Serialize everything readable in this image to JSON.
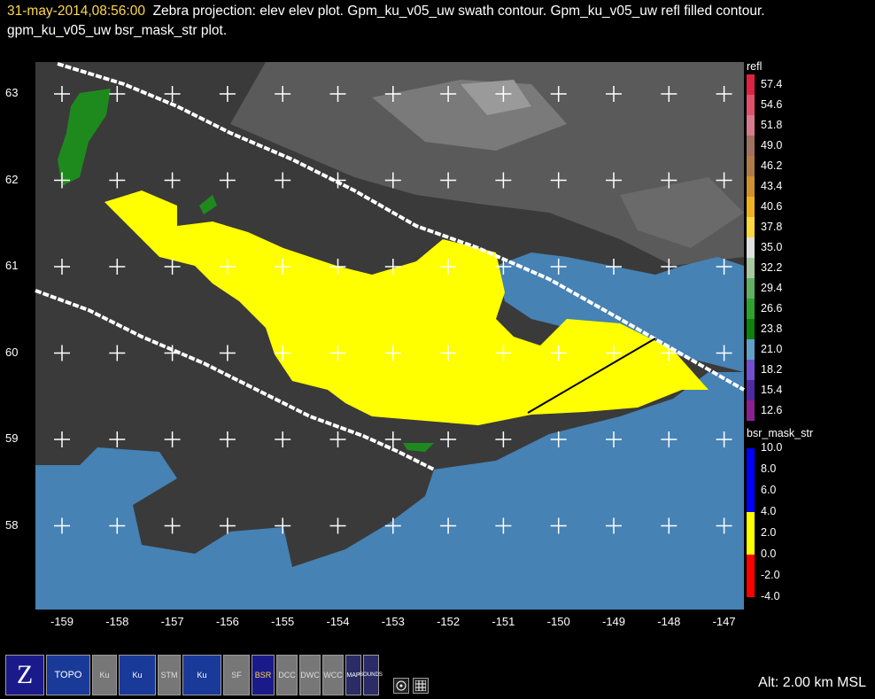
{
  "title": {
    "timestamp": "31-may-2014,08:56:00",
    "text": "Zebra projection: elev elev  plot.  Gpm_ku_v05_uw swath contour.  Gpm_ku_v05_uw refl filled contour.  gpm_ku_v05_uw bsr_mask_str  plot."
  },
  "map": {
    "lat_labels": [
      "63",
      "62",
      "61",
      "60",
      "59",
      "58"
    ],
    "lon_labels": [
      "-159",
      "-158",
      "-157",
      "-156",
      "-155",
      "-154",
      "-153",
      "-152",
      "-151",
      "-150",
      "-149",
      "-148",
      "-147"
    ],
    "colors": {
      "ocean": "#4682b4",
      "land": "#3c3c3c",
      "precip": "#ffff00",
      "swath": "#ffffff"
    }
  },
  "legend_refl": {
    "title": "refl",
    "labels": [
      "57.4",
      "54.6",
      "51.8",
      "49.0",
      "46.2",
      "43.4",
      "40.6",
      "37.8",
      "35.0",
      "32.2",
      "29.4",
      "26.6",
      "23.8",
      "21.0",
      "18.2",
      "15.4",
      "12.6"
    ],
    "colors": [
      "#dd2244",
      "#e0506a",
      "#d87a8e",
      "#a07060",
      "#b07a48",
      "#d09030",
      "#f0b020",
      "#ffd840",
      "#e0e0e0",
      "#a8c8a0",
      "#60b060",
      "#30a030",
      "#108010",
      "#60a0c8",
      "#7050d0",
      "#502aa0",
      "#8a2090"
    ]
  },
  "legend_bsr": {
    "title": "bsr_mask_str",
    "labels": [
      "10.0",
      "8.0",
      "6.0",
      "4.0",
      "2.0",
      "0.0",
      "-2.0",
      "-4.0"
    ],
    "colors": [
      "#0000ff",
      "#0000ff",
      "#0000ff",
      "#ffff00",
      "#ffff00",
      "#ff0000",
      "#ff0000"
    ]
  },
  "toolbar": {
    "buttons": [
      "Z",
      "TOPO",
      "Ku",
      "Ku",
      "STM",
      "Ku",
      "SF",
      "BSR",
      "DCC",
      "DWC",
      "WCC",
      "MAP",
      "BOUNDS",
      "",
      ""
    ]
  },
  "status": {
    "altitude": "Alt: 2.00 km MSL"
  }
}
